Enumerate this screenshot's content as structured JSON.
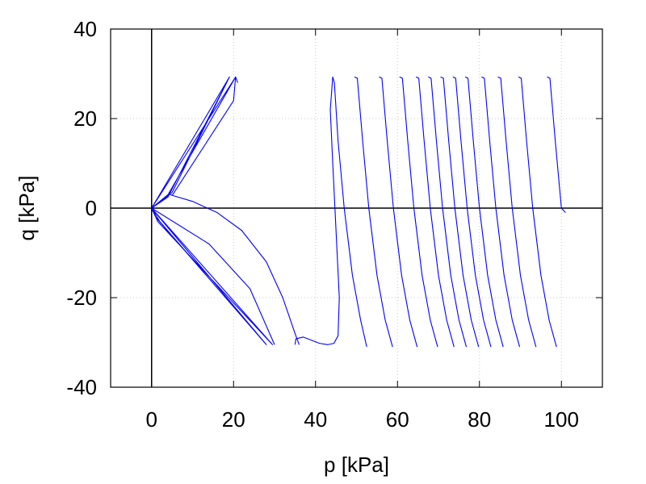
{
  "chart_data": {
    "type": "line",
    "title": "",
    "xlabel": "p [kPa]",
    "ylabel": "q [kPa]",
    "xlim": [
      -10,
      110
    ],
    "ylim": [
      -40,
      40
    ],
    "xticks": [
      0,
      20,
      40,
      60,
      80,
      100
    ],
    "yticks": [
      -40,
      -20,
      0,
      20,
      40
    ],
    "xtick_labels": [
      "0",
      "20",
      "40",
      "60",
      "80",
      "100"
    ],
    "ytick_labels": [
      "-40",
      "-20",
      "0",
      "20",
      "40"
    ],
    "grid": true,
    "zero_lines": true,
    "line_color": "#0000ff",
    "series": [
      {
        "segments": [
          [
            [
              0,
              0
            ],
            [
              19,
              29.3
            ],
            [
              5,
              3.5
            ],
            [
              0,
              0
            ],
            [
              19,
              29.3
            ],
            [
              4,
              2.5
            ],
            [
              0,
              0
            ],
            [
              20.5,
              29.3
            ],
            [
              4,
              3
            ],
            [
              0,
              0
            ]
          ],
          [
            [
              0,
              0
            ],
            [
              28,
              -30.5
            ],
            [
              2,
              -3
            ],
            [
              0,
              0
            ],
            [
              29.5,
              -30.5
            ],
            [
              1.5,
              -3
            ],
            [
              0,
              0
            ],
            [
              28,
              -30.5
            ],
            [
              1,
              -2
            ],
            [
              0,
              0
            ]
          ],
          [
            [
              4.5,
              3
            ],
            [
              10,
              1.5
            ],
            [
              16,
              -1
            ],
            [
              22,
              -5
            ],
            [
              28,
              -12
            ],
            [
              32,
              -20
            ],
            [
              35,
              -28
            ],
            [
              36,
              -30.5
            ]
          ],
          [
            [
              5,
              2.8
            ],
            [
              20,
              24
            ],
            [
              20.5,
              29.3
            ],
            [
              21,
              28
            ]
          ],
          [
            [
              0,
              0
            ],
            [
              14,
              -8
            ],
            [
              24,
              -18
            ],
            [
              30,
              -30.5
            ]
          ],
          [
            [
              35,
              -30.5
            ],
            [
              35.2,
              -29.2
            ],
            [
              37,
              -28.8
            ],
            [
              39,
              -29.5
            ],
            [
              41,
              -30.2
            ],
            [
              43,
              -30.5
            ],
            [
              44.5,
              -30.2
            ],
            [
              45.5,
              -28.5
            ],
            [
              45.8,
              -20
            ],
            [
              45,
              -5
            ],
            [
              44.2,
              10
            ],
            [
              43.6,
              22
            ],
            [
              44.2,
              29.3
            ],
            [
              44.6,
              28
            ],
            [
              45.5,
              15
            ],
            [
              47,
              0
            ],
            [
              49,
              -15
            ],
            [
              51,
              -25
            ],
            [
              52.5,
              -31
            ]
          ],
          [
            [
              49.5,
              29.3
            ],
            [
              50.2,
              29
            ],
            [
              51.5,
              15
            ],
            [
              53,
              0
            ],
            [
              55,
              -15
            ],
            [
              57,
              -25
            ],
            [
              58.8,
              -31
            ]
          ],
          [
            [
              55.5,
              29.3
            ],
            [
              56.2,
              29
            ],
            [
              57.5,
              15
            ],
            [
              59,
              0
            ],
            [
              61,
              -15
            ],
            [
              63,
              -25
            ],
            [
              64.8,
              -31
            ]
          ],
          [
            [
              60.5,
              29.3
            ],
            [
              61.2,
              29
            ],
            [
              62.5,
              15
            ],
            [
              64,
              0
            ],
            [
              66,
              -15
            ],
            [
              68,
              -25
            ],
            [
              69.8,
              -31
            ]
          ],
          [
            [
              64.5,
              29.3
            ],
            [
              65.2,
              29
            ],
            [
              66.5,
              15
            ],
            [
              68,
              0
            ],
            [
              70,
              -15
            ],
            [
              72,
              -25
            ],
            [
              73.8,
              -31
            ]
          ],
          [
            [
              67.5,
              29.3
            ],
            [
              68.2,
              29
            ],
            [
              69.5,
              15
            ],
            [
              71,
              0
            ],
            [
              73,
              -15
            ],
            [
              75,
              -25
            ],
            [
              76.8,
              -31
            ]
          ],
          [
            [
              70.5,
              29.3
            ],
            [
              71.2,
              29
            ],
            [
              72.5,
              15
            ],
            [
              74,
              0
            ],
            [
              76,
              -15
            ],
            [
              78,
              -25
            ],
            [
              79.8,
              -31
            ]
          ],
          [
            [
              73.5,
              29.3
            ],
            [
              74.2,
              29
            ],
            [
              75.5,
              15
            ],
            [
              77,
              0
            ],
            [
              79,
              -15
            ],
            [
              81,
              -25
            ],
            [
              82.8,
              -31
            ]
          ],
          [
            [
              76.5,
              29.3
            ],
            [
              77.2,
              29
            ],
            [
              78.5,
              15
            ],
            [
              80,
              0
            ],
            [
              82,
              -15
            ],
            [
              84,
              -25
            ],
            [
              85.8,
              -31
            ]
          ],
          [
            [
              80.5,
              29.3
            ],
            [
              81.2,
              29
            ],
            [
              82.5,
              15
            ],
            [
              84,
              0
            ],
            [
              86,
              -15
            ],
            [
              88,
              -25
            ],
            [
              89.8,
              -31
            ]
          ],
          [
            [
              84.5,
              29.3
            ],
            [
              85.2,
              29
            ],
            [
              86.5,
              15
            ],
            [
              88,
              0
            ],
            [
              90,
              -15
            ],
            [
              92,
              -25
            ],
            [
              93.8,
              -31
            ]
          ],
          [
            [
              89.5,
              29.3
            ],
            [
              90.2,
              29
            ],
            [
              91.5,
              15
            ],
            [
              93,
              0
            ],
            [
              95,
              -15
            ],
            [
              97,
              -25
            ],
            [
              98.8,
              -31
            ]
          ],
          [
            [
              96.5,
              29.3
            ],
            [
              97.2,
              29
            ],
            [
              98.5,
              15
            ],
            [
              100,
              0
            ],
            [
              101,
              -1
            ]
          ]
        ]
      }
    ]
  }
}
